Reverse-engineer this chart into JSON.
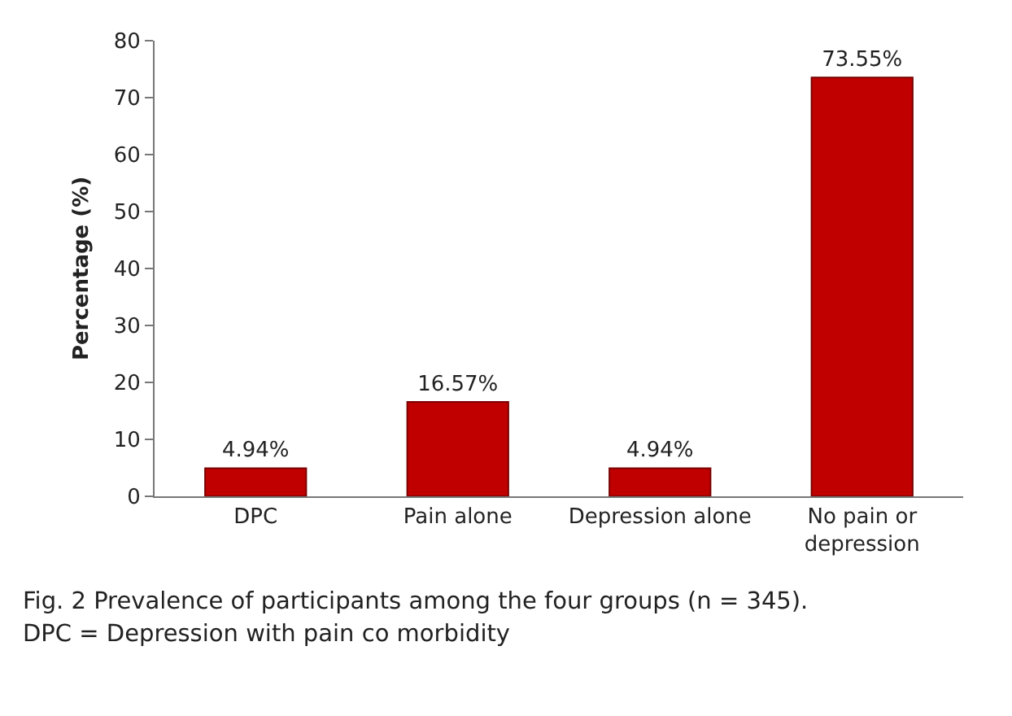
{
  "chart_data": {
    "type": "bar",
    "ylabel": "Percentage (%)",
    "categories": [
      "DPC",
      "Pain alone",
      "Depression alone",
      "No pain or depression"
    ],
    "values": [
      4.94,
      16.57,
      4.94,
      73.55
    ],
    "value_labels": [
      "4.94%",
      "16.57%",
      "4.94%",
      "73.55%"
    ],
    "color": "#c00000",
    "ylim": [
      0,
      80
    ],
    "yticks": [
      0,
      10,
      20,
      30,
      40,
      50,
      60,
      70,
      80
    ],
    "grid": false,
    "annotations": [
      "Fig. 2 Prevalence of participants among the four groups (n = 345).",
      "DPC = Depression with pain co morbidity"
    ]
  }
}
